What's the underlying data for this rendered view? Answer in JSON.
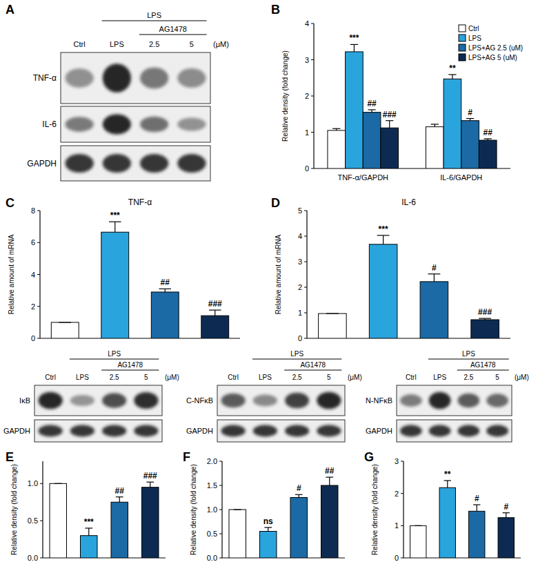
{
  "chart_data": [
    {
      "type": "bar",
      "panel_label": "B",
      "y_label": "Relative density (fold change)",
      "categories": [
        "TNF-α/GAPDH",
        "IL-6/GAPDH"
      ],
      "series": [
        {
          "name": "Ctrl",
          "color": "#ffffff",
          "values": [
            1.05,
            1.15
          ],
          "errors": [
            0.05,
            0.07
          ],
          "annotations": [
            null,
            null
          ]
        },
        {
          "name": "LPS",
          "color": "#2aa4dc",
          "values": [
            3.22,
            2.47
          ],
          "errors": [
            0.2,
            0.12
          ],
          "annotations": [
            "***",
            "**"
          ]
        },
        {
          "name": "LPS+AG 2.5 (uM)",
          "color": "#1b6aa5",
          "values": [
            1.55,
            1.32
          ],
          "errors": [
            0.07,
            0.06
          ],
          "annotations": [
            "##",
            "#"
          ]
        },
        {
          "name": "LPS+AG 5 (uM)",
          "color": "#0d2b52",
          "values": [
            1.12,
            0.78
          ],
          "errors": [
            0.2,
            0.04
          ],
          "annotations": [
            "###",
            "##"
          ]
        }
      ],
      "ylim": [
        0,
        4
      ],
      "yticks": [
        0,
        1,
        2,
        3,
        4
      ],
      "legend": "upper right"
    },
    {
      "type": "bar",
      "panel_label": "C",
      "title": "TNF-α",
      "y_label": "Relative amount of mRNA",
      "categories": [
        null,
        null,
        null,
        null
      ],
      "values": [
        1,
        6.65,
        2.9,
        1.42
      ],
      "errors": [
        0,
        0.65,
        0.2,
        0.35
      ],
      "annotations": [
        null,
        "***",
        "##",
        "###"
      ],
      "colors": [
        "#ffffff",
        "#2aa4dc",
        "#1b6aa5",
        "#0d2b52"
      ],
      "ylim": [
        0,
        8
      ],
      "yticks": [
        0,
        2,
        4,
        6,
        8
      ]
    },
    {
      "type": "bar",
      "panel_label": "D",
      "title": "IL-6",
      "y_label": "Relative amount of mRNA",
      "categories": [
        null,
        null,
        null,
        null
      ],
      "values": [
        0.97,
        3.68,
        2.22,
        0.73
      ],
      "errors": [
        0,
        0.35,
        0.3,
        0.05
      ],
      "annotations": [
        null,
        "***",
        "#",
        "###"
      ],
      "colors": [
        "#ffffff",
        "#2aa4dc",
        "#1b6aa5",
        "#0d2b52"
      ],
      "ylim": [
        0,
        5
      ],
      "yticks": [
        0,
        1,
        2,
        3,
        4,
        5
      ]
    },
    {
      "type": "bar",
      "panel_label": "E",
      "y_label": "Relative density (fold change)",
      "categories": [
        null,
        null,
        null,
        null
      ],
      "values": [
        1.0,
        0.3,
        0.75,
        0.95
      ],
      "errors": [
        0,
        0.1,
        0.07,
        0.07
      ],
      "annotations": [
        null,
        "***",
        "##",
        "###"
      ],
      "colors": [
        "#ffffff",
        "#2aa4dc",
        "#1b6aa5",
        "#0d2b52"
      ],
      "ylim": [
        0,
        1.3
      ],
      "yticks": [
        {
          "value": 0,
          "label": "0.0"
        },
        {
          "value": 0.5,
          "label": "0.5"
        },
        {
          "value": 1,
          "label": "1.0"
        }
      ]
    },
    {
      "type": "bar",
      "panel_label": "F",
      "y_label": "Relative density (fold change)",
      "categories": [
        null,
        null,
        null,
        null
      ],
      "values": [
        1.0,
        0.55,
        1.25,
        1.5
      ],
      "errors": [
        0,
        0.08,
        0.06,
        0.17
      ],
      "annotations": [
        null,
        "ns",
        "#",
        "##"
      ],
      "colors": [
        "#ffffff",
        "#2aa4dc",
        "#1b6aa5",
        "#0d2b52"
      ],
      "ylim": [
        0,
        2
      ],
      "yticks": [
        {
          "value": 0,
          "label": "0.0"
        },
        {
          "value": 0.5,
          "label": "0.5"
        },
        {
          "value": 1,
          "label": "1.0"
        },
        {
          "value": 1.5,
          "label": "1.5"
        },
        {
          "value": 2,
          "label": "2.0"
        }
      ]
    },
    {
      "type": "bar",
      "panel_label": "G",
      "y_label": "Relative density (fold change)",
      "categories": [
        null,
        null,
        null,
        null
      ],
      "values": [
        1,
        2.18,
        1.45,
        1.25
      ],
      "errors": [
        0,
        0.22,
        0.2,
        0.15
      ],
      "annotations": [
        null,
        "**",
        "#",
        "#"
      ],
      "colors": [
        "#ffffff",
        "#2aa4dc",
        "#1b6aa5",
        "#0d2b52"
      ],
      "ylim": [
        0,
        3
      ],
      "yticks": [
        0,
        1,
        2,
        3
      ]
    }
  ],
  "blots": [
    {
      "panel_label": "A",
      "group_labels": [
        "LPS",
        "AG1478"
      ],
      "lanes": [
        "Ctrl",
        "LPS",
        "2.5",
        "5"
      ],
      "unit": "(μM)",
      "rows": [
        "TNF-α",
        "IL-6",
        "GAPDH"
      ]
    },
    {
      "group_labels": [
        "LPS",
        "AG1478"
      ],
      "lanes": [
        "Ctrl",
        "LPS",
        "2.5",
        "5"
      ],
      "unit": "(μM)",
      "rows": [
        "IκB",
        "GAPDH"
      ]
    },
    {
      "group_labels": [
        "LPS",
        "AG1478"
      ],
      "lanes": [
        "Ctrl",
        "LPS",
        "2.5",
        "5"
      ],
      "unit": "(μM)",
      "rows": [
        "C-NFκB",
        "GAPDH"
      ]
    },
    {
      "group_labels": [
        "LPS",
        "AG1478"
      ],
      "lanes": [
        "Ctrl",
        "LPS",
        "2.5",
        "5"
      ],
      "unit": "(μM)",
      "rows": [
        "N-NFκB",
        "GAPDH"
      ]
    }
  ]
}
